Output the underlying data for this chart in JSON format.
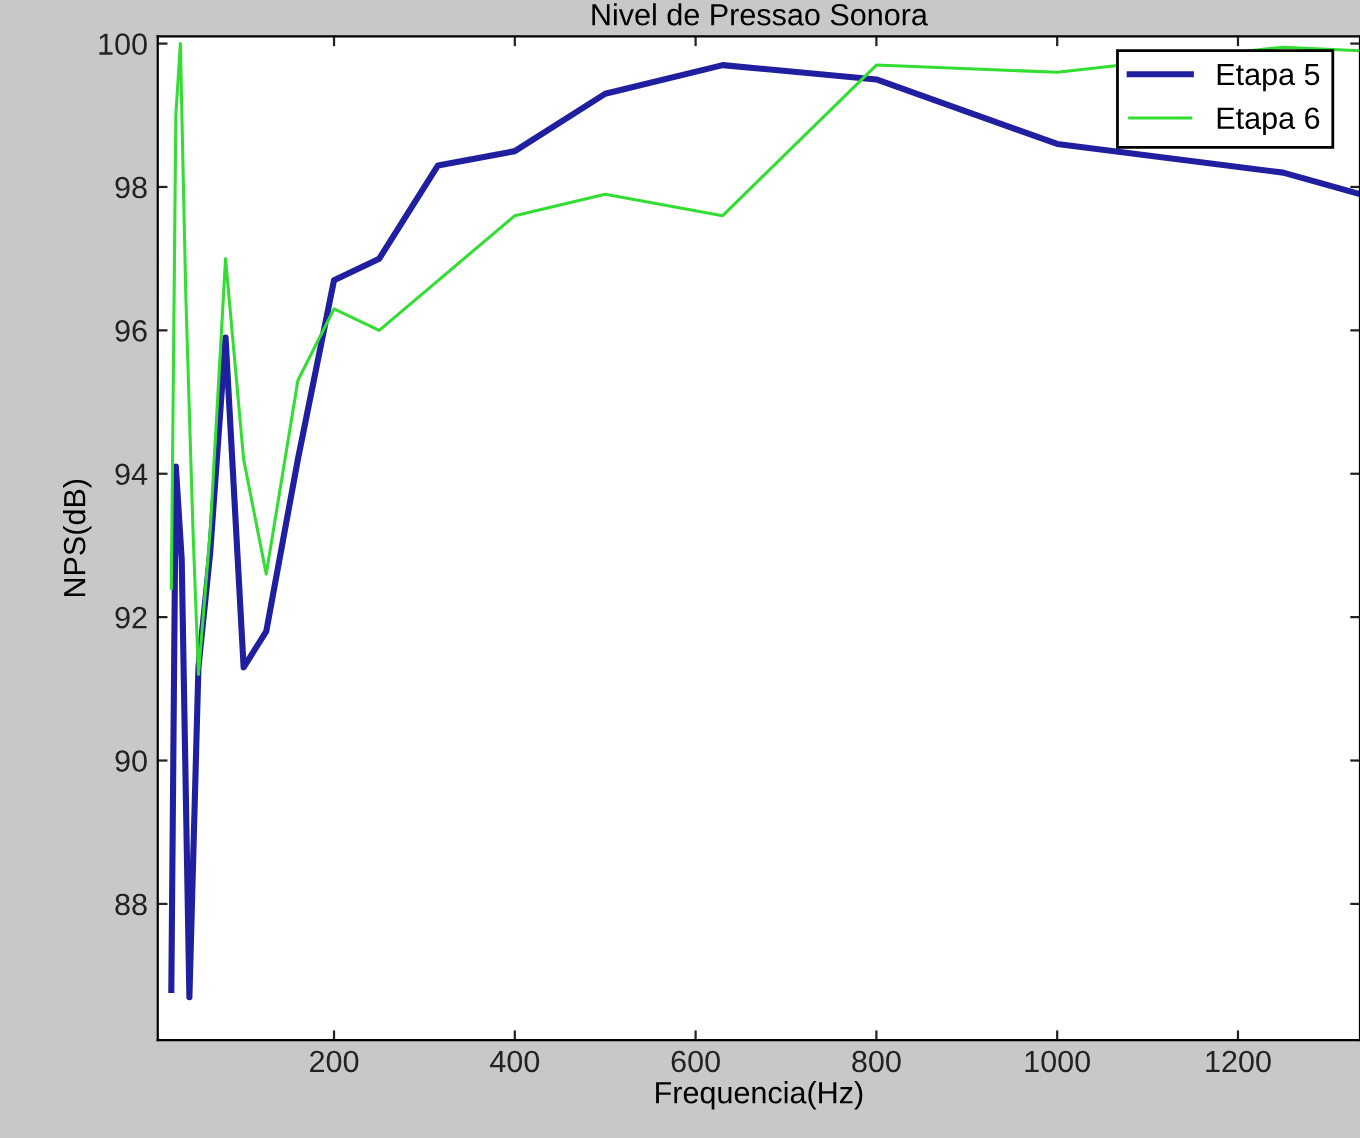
{
  "chart_data": {
    "type": "line",
    "title": "Nivel de Pressao Sonora",
    "xlabel": "Frequencia(Hz)",
    "ylabel": "NPS(dB)",
    "xlim": [
      5,
      1335
    ],
    "ylim": [
      86.1,
      100.1
    ],
    "xticks": [
      200,
      400,
      600,
      800,
      1000,
      1200
    ],
    "yticks": [
      88,
      90,
      92,
      94,
      96,
      98,
      100
    ],
    "grid": false,
    "legend": "top right",
    "marker": "none",
    "line_style": "solid",
    "series": [
      {
        "name": "Etapa 5",
        "color": "#1f1fa0",
        "x": [
          20,
          25,
          31.5,
          40,
          50,
          63,
          80,
          100,
          125,
          160,
          200,
          250,
          315,
          400,
          500,
          630,
          800,
          1000,
          1250,
          1335
        ],
        "values": [
          86.8,
          94.1,
          92.8,
          86.7,
          91.3,
          92.9,
          95.9,
          91.3,
          91.8,
          94.2,
          96.7,
          97.0,
          98.3,
          98.5,
          99.3,
          99.7,
          99.5,
          98.6,
          98.2,
          97.9
        ]
      },
      {
        "name": "Etapa 6",
        "color": "#33dd33",
        "x": [
          20,
          25,
          30,
          36,
          44,
          50,
          63,
          80,
          100,
          125,
          160,
          200,
          250,
          400,
          500,
          630,
          800,
          1000,
          1250,
          1335
        ],
        "values": [
          92.4,
          99.0,
          100.0,
          96.5,
          93.2,
          91.2,
          93.2,
          97.0,
          94.2,
          92.6,
          95.3,
          96.3,
          96.0,
          97.6,
          97.9,
          97.6,
          99.7,
          99.6,
          99.95,
          99.9
        ]
      }
    ]
  }
}
